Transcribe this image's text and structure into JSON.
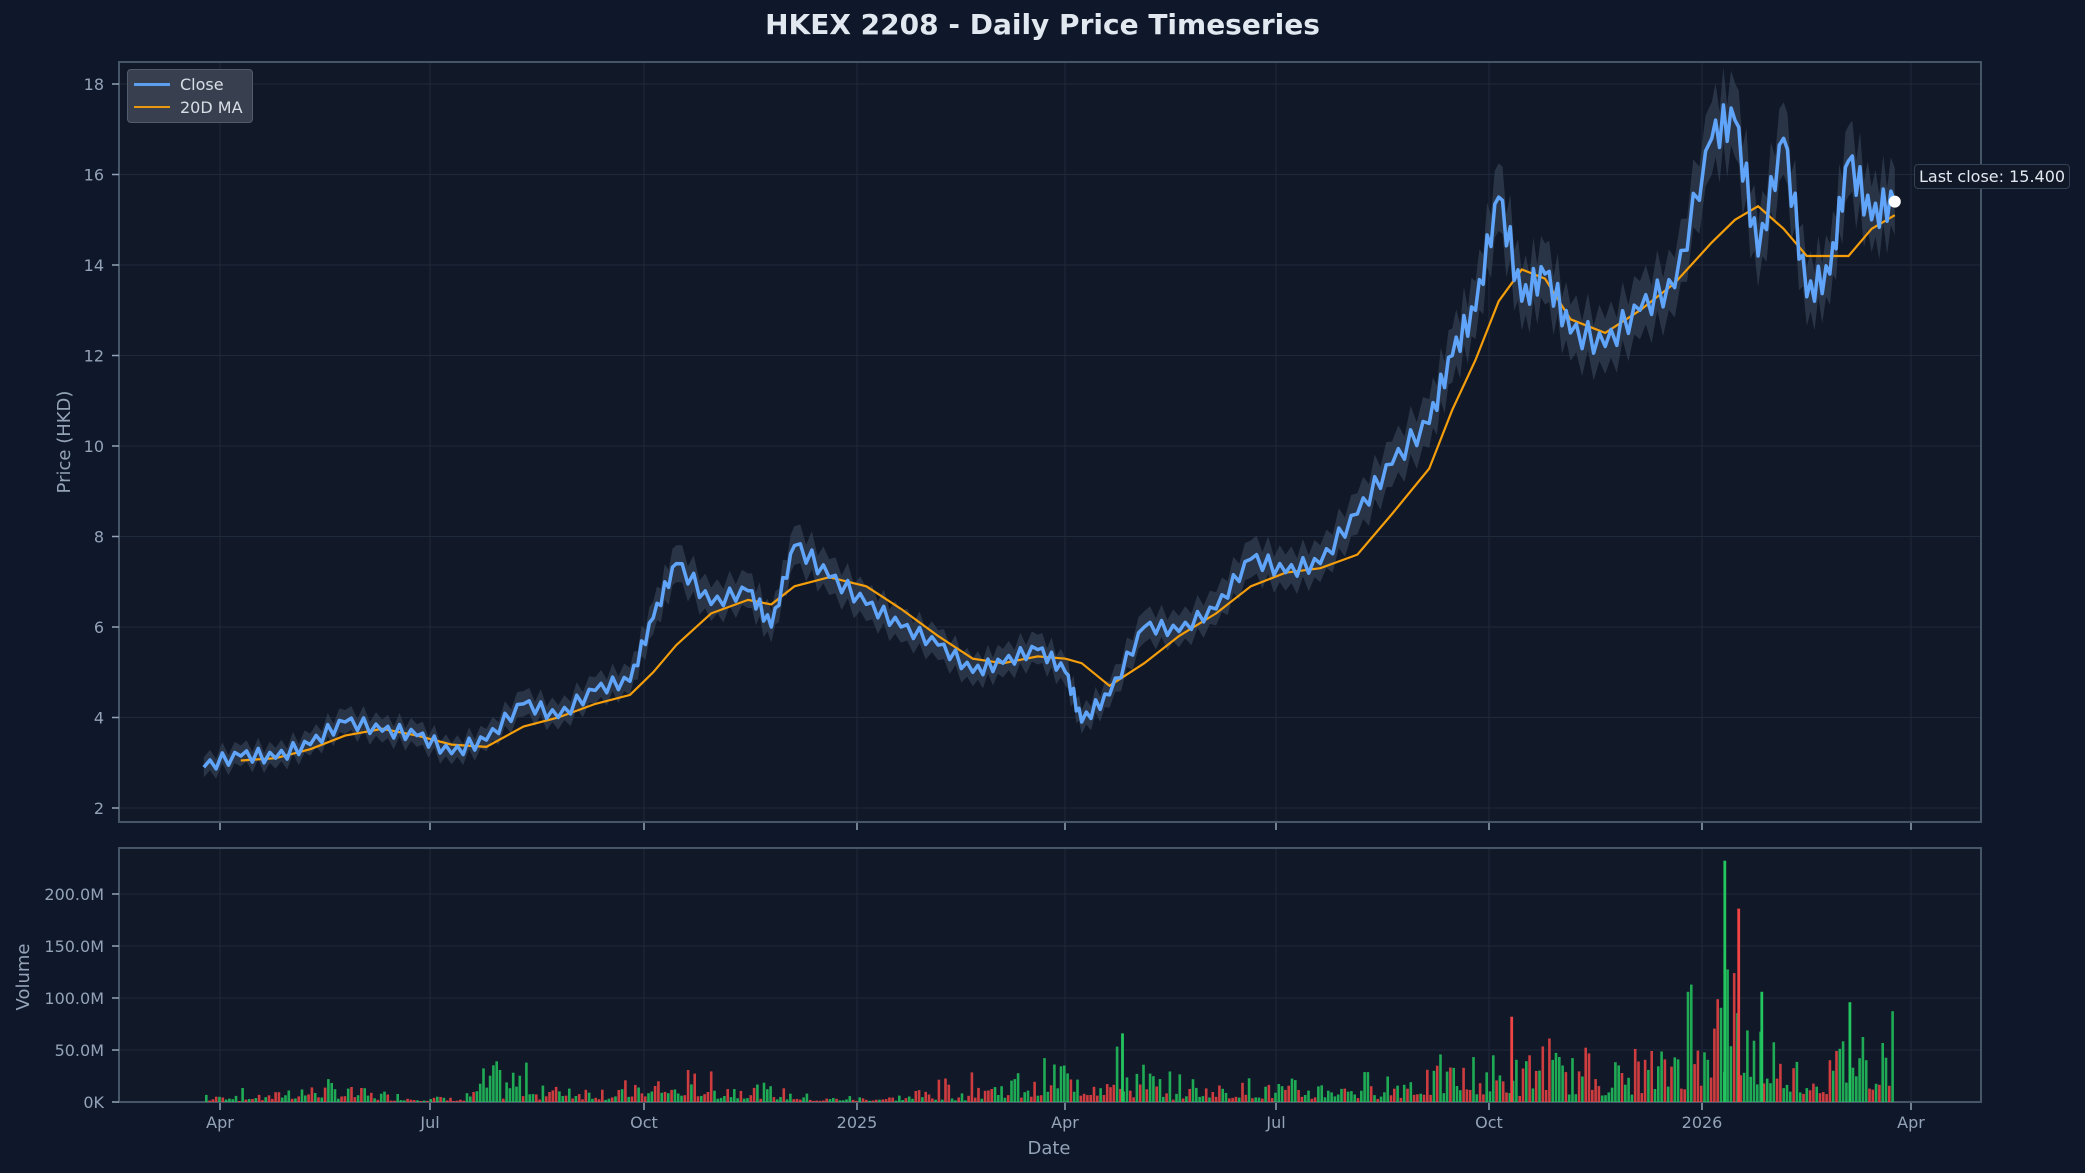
{
  "title": "HKEX 2208 - Daily Price Timeseries",
  "colors": {
    "background": "#0f172a",
    "plot_bg": "#111827",
    "close": "#60a5fa",
    "ma": "#f59e0b",
    "band": "#334155",
    "vol_up": "#22c55e",
    "vol_down": "#ef4444",
    "grid": "#1e293b",
    "axis": "#475569"
  },
  "legend": {
    "items": [
      {
        "label": "Close",
        "color": "#60a5fa"
      },
      {
        "label": "20D MA",
        "color": "#f59e0b"
      }
    ]
  },
  "annotation": {
    "last_close_label": "Last close: 15.400",
    "last_close": 15.4
  },
  "chart_data": [
    {
      "type": "line",
      "title": "HKEX 2208 - Daily Price Timeseries",
      "ylabel": "Price (HKD)",
      "xlabel": "",
      "ylim": [
        1.7,
        18.5
      ],
      "yticks": [
        2,
        4,
        6,
        8,
        10,
        12,
        14,
        16,
        18
      ],
      "xticks": [
        "Apr",
        "Jul",
        "Oct",
        "2025",
        "Apr",
        "Jul",
        "Oct",
        "2026",
        "Apr"
      ],
      "grid": true,
      "legend_position": "upper left",
      "x": [
        "2024-03-25",
        "2024-04-10",
        "2024-04-25",
        "2024-05-10",
        "2024-05-25",
        "2024-06-10",
        "2024-06-25",
        "2024-07-10",
        "2024-07-25",
        "2024-08-10",
        "2024-08-25",
        "2024-09-10",
        "2024-09-25",
        "2024-10-05",
        "2024-10-15",
        "2024-10-30",
        "2024-11-15",
        "2024-11-25",
        "2024-12-05",
        "2024-12-20",
        "2025-01-05",
        "2025-01-20",
        "2025-02-05",
        "2025-02-20",
        "2025-03-05",
        "2025-03-20",
        "2025-04-01",
        "2025-04-08",
        "2025-04-20",
        "2025-05-05",
        "2025-05-20",
        "2025-06-05",
        "2025-06-20",
        "2025-07-05",
        "2025-07-20",
        "2025-08-05",
        "2025-08-20",
        "2025-09-05",
        "2025-09-15",
        "2025-09-25",
        "2025-10-05",
        "2025-10-15",
        "2025-10-25",
        "2025-11-05",
        "2025-11-20",
        "2025-12-05",
        "2025-12-20",
        "2026-01-05",
        "2026-01-15",
        "2026-01-25",
        "2026-02-05",
        "2026-02-15",
        "2026-02-25",
        "2026-03-05",
        "2026-03-15",
        "2026-03-25"
      ],
      "series": [
        {
          "name": "Close",
          "values": [
            2.9,
            3.15,
            3.1,
            3.4,
            3.9,
            3.7,
            3.6,
            3.2,
            3.5,
            4.3,
            4.0,
            4.6,
            4.8,
            6.2,
            7.4,
            6.5,
            6.8,
            6.0,
            7.8,
            7.1,
            6.5,
            6.0,
            5.6,
            5.0,
            5.2,
            5.5,
            5.0,
            3.9,
            4.5,
            6.0,
            5.9,
            6.4,
            7.5,
            7.2,
            7.4,
            8.5,
            9.6,
            10.5,
            12.0,
            13.0,
            15.5,
            13.2,
            13.8,
            12.5,
            12.2,
            13.0,
            13.5,
            16.8,
            17.2,
            14.2,
            16.8,
            13.3,
            13.8,
            16.3,
            15.0,
            15.4
          ]
        },
        {
          "name": "20D MA",
          "values": [
            null,
            3.05,
            3.1,
            3.3,
            3.6,
            3.75,
            3.6,
            3.4,
            3.35,
            3.8,
            4.0,
            4.3,
            4.5,
            5.0,
            5.6,
            6.3,
            6.6,
            6.5,
            6.9,
            7.1,
            6.9,
            6.4,
            5.8,
            5.3,
            5.2,
            5.35,
            5.3,
            5.2,
            4.7,
            5.2,
            5.8,
            6.3,
            6.9,
            7.2,
            7.3,
            7.6,
            8.5,
            9.5,
            10.8,
            11.9,
            13.2,
            13.9,
            13.7,
            12.8,
            12.5,
            13.0,
            13.6,
            14.5,
            15.0,
            15.3,
            14.8,
            14.2,
            14.2,
            14.2,
            14.8,
            15.1
          ]
        }
      ]
    },
    {
      "type": "bar",
      "title": "",
      "ylabel": "Volume",
      "xlabel": "Date",
      "ylim": [
        0,
        235
      ],
      "yticks": [
        "0K",
        "50.0M",
        "100.0M",
        "150.0M",
        "200.0M"
      ],
      "xticks": [
        "Apr",
        "Jul",
        "Oct",
        "2025",
        "Apr",
        "Jul",
        "Oct",
        "2026",
        "Apr"
      ],
      "grid": true,
      "unit": "M",
      "x": [
        "2024-04",
        "2024-05",
        "2024-06",
        "2024-07",
        "2024-07-25",
        "2024-08",
        "2024-09",
        "2024-10",
        "2024-11",
        "2024-12",
        "2025-01",
        "2025-02",
        "2025-03",
        "2025-04",
        "2025-05",
        "2025-06",
        "2025-07",
        "2025-08",
        "2025-09",
        "2025-10",
        "2025-10-20",
        "2025-11",
        "2025-12",
        "2026-01-05",
        "2026-01-12",
        "2026-01-20",
        "2026-02",
        "2026-03"
      ],
      "series": [
        {
          "name": "Volume (up)",
          "color": "#22c55e",
          "values": [
            14,
            24,
            10,
            6,
            40,
            38,
            12,
            18,
            22,
            6,
            8,
            10,
            36,
            66,
            30,
            28,
            22,
            34,
            50,
            48,
            58,
            40,
            52,
            232,
            138,
            106,
            50,
            96
          ]
        },
        {
          "name": "Volume (down)",
          "color": "#ef4444",
          "values": [
            6,
            20,
            8,
            4,
            22,
            16,
            18,
            36,
            24,
            4,
            6,
            30,
            20,
            36,
            14,
            20,
            16,
            20,
            40,
            36,
            82,
            50,
            60,
            110,
            186,
            60,
            36,
            76
          ]
        }
      ]
    }
  ],
  "price_axis": {
    "label": "Price (HKD)",
    "ticks": [
      "2",
      "4",
      "6",
      "8",
      "10",
      "12",
      "14",
      "16",
      "18"
    ]
  },
  "volume_axis": {
    "label": "Volume",
    "ticks": [
      "0K",
      "50.0M",
      "100.0M",
      "150.0M",
      "200.0M"
    ]
  },
  "x_axis": {
    "label": "Date",
    "ticks": [
      "Apr",
      "Jul",
      "Oct",
      "2025",
      "Apr",
      "Jul",
      "Oct",
      "2026",
      "Apr"
    ]
  }
}
